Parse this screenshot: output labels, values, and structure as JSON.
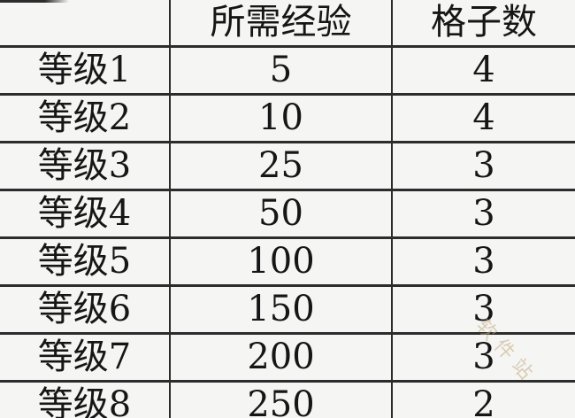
{
  "header": {
    "level": "",
    "exp": "所需经验",
    "slots": "格子数"
  },
  "rows": [
    {
      "level": "等级1",
      "exp": "5",
      "slots": "4"
    },
    {
      "level": "等级2",
      "exp": "10",
      "slots": "4"
    },
    {
      "level": "等级3",
      "exp": "25",
      "slots": "3"
    },
    {
      "level": "等级4",
      "exp": "50",
      "slots": "3"
    },
    {
      "level": "等级5",
      "exp": "100",
      "slots": "3"
    },
    {
      "level": "等级6",
      "exp": "150",
      "slots": "3"
    },
    {
      "level": "等级7",
      "exp": "200",
      "slots": "3"
    },
    {
      "level": "等级8",
      "exp": "250",
      "slots": "2"
    }
  ],
  "watermark": {
    "text": "软件站"
  },
  "colors": {
    "background": "#f5f5f4",
    "border": "#2c2c2c",
    "text": "#161616",
    "watermark": "#c3a97f"
  }
}
